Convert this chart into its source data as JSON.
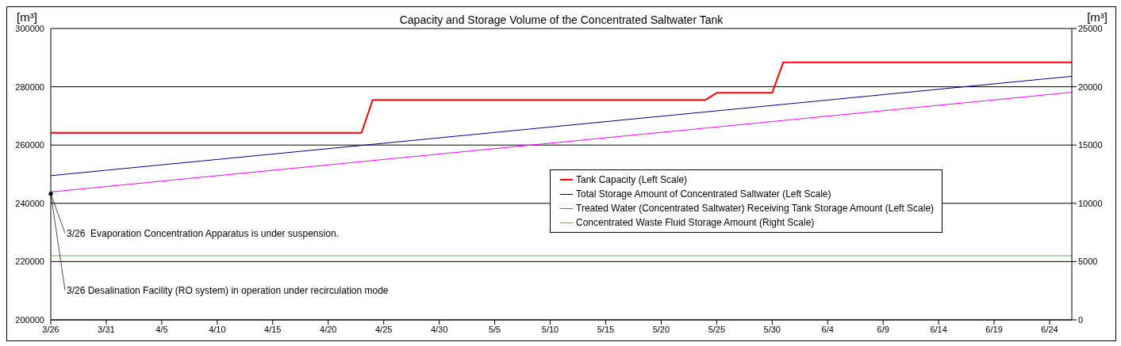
{
  "chart_data": {
    "type": "line",
    "title": "Capacity and Storage Volume of the Concentrated Saltwater Tank",
    "ylabel": "[m³]",
    "y2label": "[m³]",
    "xlim": [
      "--03-26",
      "--06-26"
    ],
    "xticks": [
      {
        "value": "--03-26",
        "label": "3/26"
      },
      {
        "value": "--03-31",
        "label": "3/31"
      },
      {
        "value": "--04-05",
        "label": "4/5"
      },
      {
        "value": "--04-10",
        "label": "4/10"
      },
      {
        "value": "--04-15",
        "label": "4/15"
      },
      {
        "value": "--04-20",
        "label": "4/20"
      },
      {
        "value": "--04-25",
        "label": "4/25"
      },
      {
        "value": "--04-30",
        "label": "4/30"
      },
      {
        "value": "--05-05",
        "label": "5/5"
      },
      {
        "value": "--05-10",
        "label": "5/10"
      },
      {
        "value": "--05-15",
        "label": "5/15"
      },
      {
        "value": "--05-20",
        "label": "5/20"
      },
      {
        "value": "--05-25",
        "label": "5/25"
      },
      {
        "value": "--05-30",
        "label": "5/30"
      },
      {
        "value": "--06-04",
        "label": "6/4"
      },
      {
        "value": "--06-09",
        "label": "6/9"
      },
      {
        "value": "--06-14",
        "label": "6/14"
      },
      {
        "value": "--06-19",
        "label": "6/19"
      },
      {
        "value": "--06-24",
        "label": "6/24"
      }
    ],
    "ylim": [
      200000,
      300000
    ],
    "yticks": [
      200000,
      220000,
      240000,
      260000,
      280000,
      300000
    ],
    "y2lim": [
      0,
      25000
    ],
    "y2ticks": [
      0,
      5000,
      10000,
      15000,
      20000,
      25000
    ],
    "grid": "y",
    "legend": "right",
    "marker": "none",
    "line_style": "solid",
    "series": [
      {
        "name": "Tank Capacity (Left Scale)",
        "color": "#ff0000",
        "x": [
          "--03-26",
          "--04-23",
          "--04-24",
          "--05-24",
          "--05-25",
          "--05-30",
          "--05-31",
          "--06-26"
        ],
        "values": [
          264200,
          264200,
          275500,
          275500,
          277900,
          277900,
          288400,
          288400
        ]
      },
      {
        "name": "Total Storage Amount of Concentrated Saltwater (Left Scale)",
        "color": "#000080",
        "x": [
          "--03-26",
          "--06-26"
        ],
        "values": [
          249500,
          283600
        ]
      },
      {
        "name": "Treated Water (Concentrated Saltwater) Receiving Tank Storage Amount (Left Scale)",
        "color": "#ff00ff",
        "x": [
          "--03-26",
          "--06-26"
        ],
        "values": [
          243900,
          278100
        ]
      },
      {
        "name": "Concentrated Waste Fluid Storage Amount (Right Scale)",
        "color": "#66b366",
        "axis": "y2",
        "x": [
          "--03-26",
          "--06-26"
        ],
        "values": [
          5500,
          5500
        ]
      }
    ],
    "annotations": [
      {
        "text": "3/26  Evaporation Concentration Apparatus is under suspension.",
        "x": "--03-26",
        "y": 243300
      },
      {
        "text": "3/26 Desalination Facility (RO system) in operation under recirculation mode",
        "x": "--03-26",
        "y": 243300
      }
    ]
  }
}
